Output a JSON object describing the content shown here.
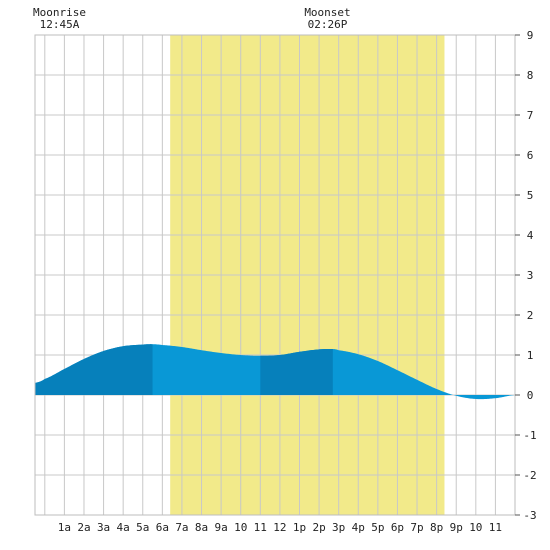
{
  "chart_data": {
    "type": "area",
    "moon": {
      "rise_label": "Moonrise",
      "rise_time": "12:45A",
      "rise_hour": 0.75,
      "set_label": "Moonset",
      "set_time": "02:26P",
      "set_hour": 14.43
    },
    "daylight": {
      "start_hour": 6.4,
      "end_hour": 20.4,
      "color": "#f2ea8a"
    },
    "x_tick_labels": [
      "1a",
      "2a",
      "3a",
      "4a",
      "5a",
      "6a",
      "7a",
      "8a",
      "9a",
      "10",
      "11",
      "12",
      "1p",
      "2p",
      "3p",
      "4p",
      "5p",
      "6p",
      "7p",
      "8p",
      "9p",
      "10",
      "11"
    ],
    "xlim": [
      -0.5,
      24.0
    ],
    "ylim": [
      -3,
      9
    ],
    "y_ticks": [
      -3,
      -2,
      -1,
      0,
      1,
      2,
      3,
      4,
      5,
      6,
      7,
      8,
      9
    ],
    "grid": true,
    "series": [
      {
        "hours": [
          -0.5,
          0,
          1,
          2,
          3,
          4,
          5,
          5.5,
          6,
          7,
          8,
          9,
          10,
          11,
          12,
          13,
          14,
          14.7,
          15,
          16,
          17,
          18,
          19,
          20,
          21,
          22,
          23,
          24
        ],
        "heights": [
          0.3,
          0.4,
          0.65,
          0.9,
          1.1,
          1.22,
          1.26,
          1.27,
          1.25,
          1.2,
          1.12,
          1.05,
          1.0,
          0.98,
          1.0,
          1.08,
          1.14,
          1.15,
          1.12,
          1.02,
          0.85,
          0.62,
          0.38,
          0.15,
          -0.02,
          -0.1,
          -0.08,
          0.0
        ]
      }
    ],
    "fill_colors": {
      "light": "#0998d6",
      "dark": "#0680bb"
    },
    "dark_intervals": [
      [
        -0.5,
        5.5
      ],
      [
        11.0,
        14.7
      ]
    ]
  }
}
